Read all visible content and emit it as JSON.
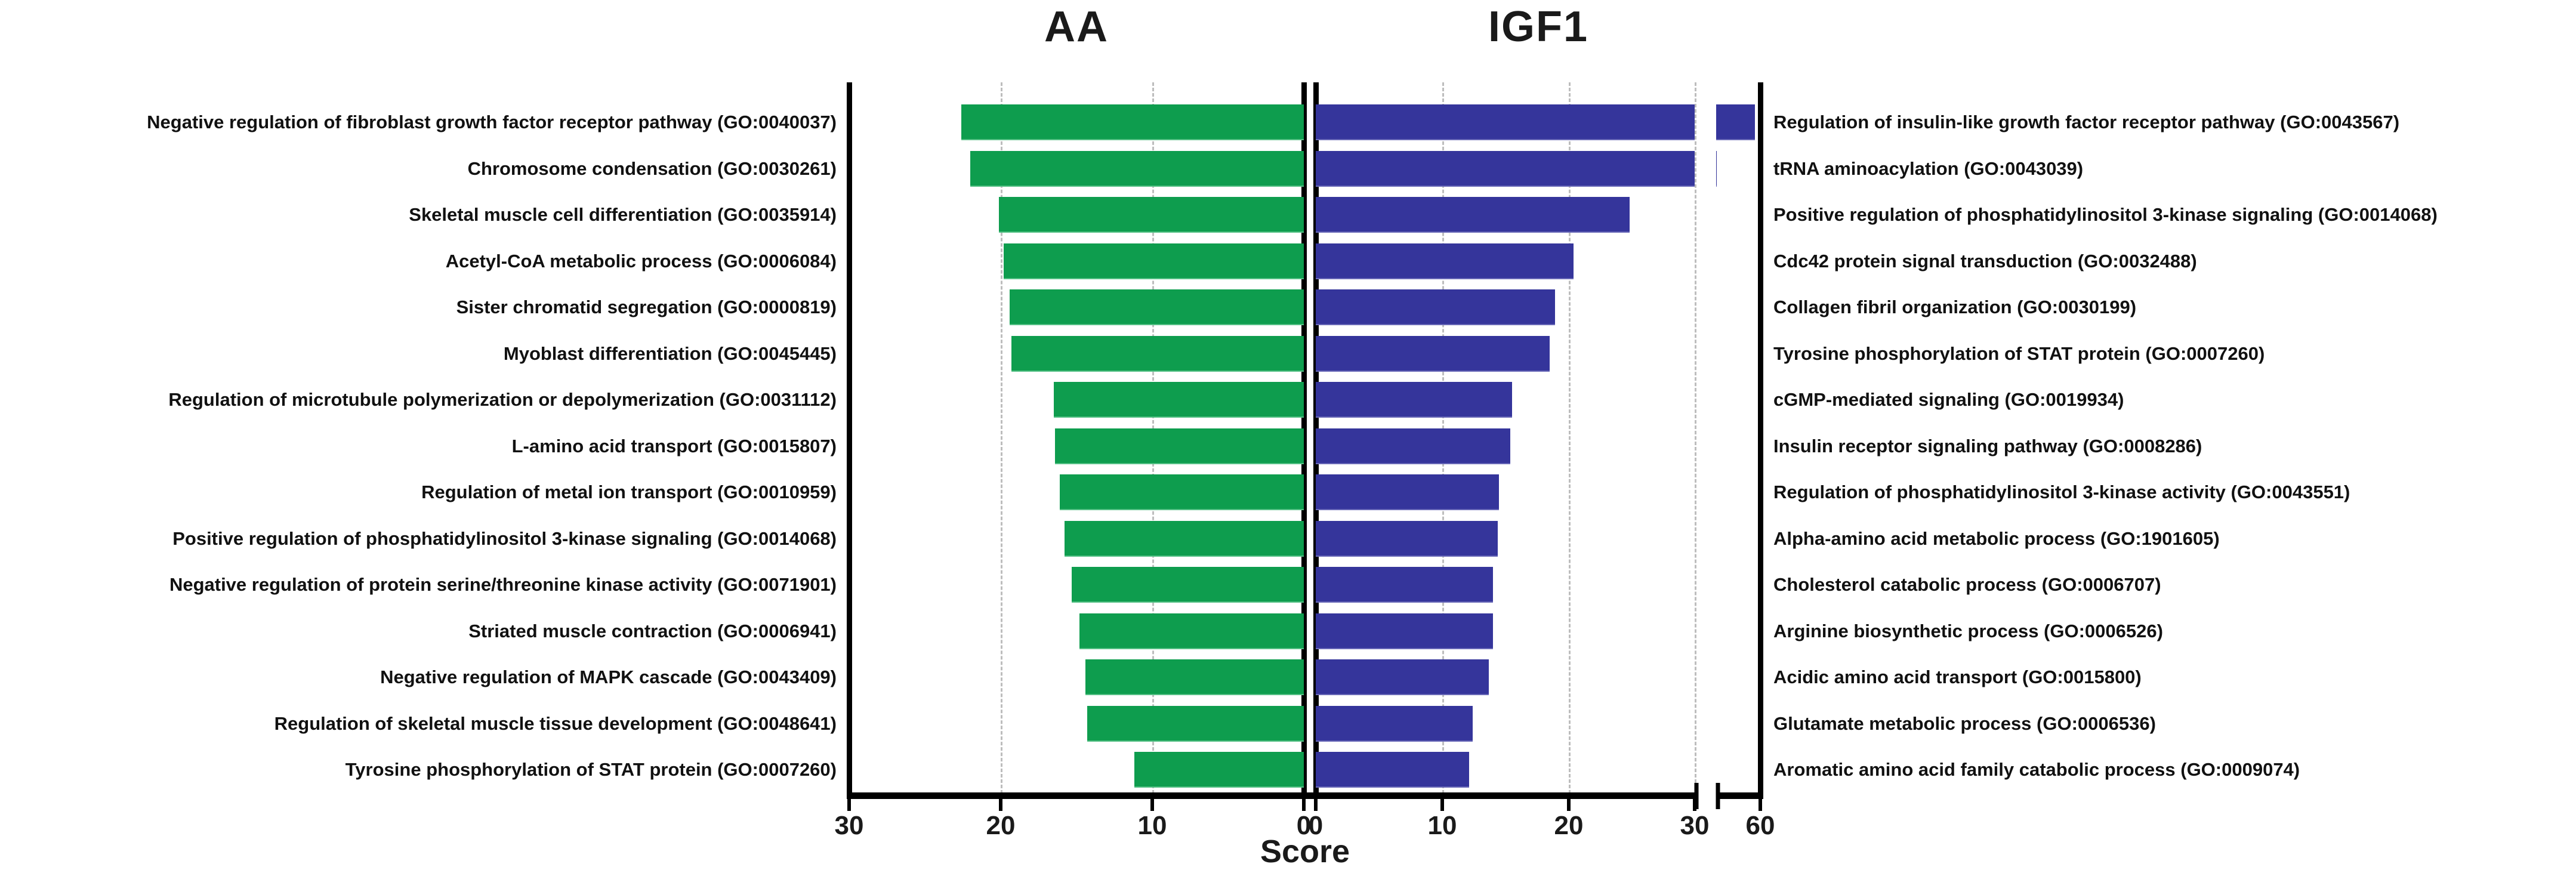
{
  "chart_data": {
    "type": "bar",
    "subtype": "back-to-back-horizontal-butterfly",
    "title_left": "AA",
    "title_right": "IGF1",
    "xlabel": "Score",
    "grid": "dashed-vertical",
    "colors": {
      "aa_bar": "#0e9d4e",
      "igf1_bar": "#35359b",
      "axis": "#000000",
      "gridline": "#bdbdbd"
    },
    "left_axis": {
      "direction": "reversed",
      "ticks": [
        30,
        20,
        10,
        0
      ],
      "range": [
        0,
        30
      ]
    },
    "right_axis": {
      "direction": "normal",
      "ticks": [
        0,
        10,
        20,
        30,
        60
      ],
      "range": [
        0,
        60
      ],
      "axis_break_between": [
        30,
        60
      ]
    },
    "rows": [
      {
        "left_label": "Negative regulation of fibroblast growth factor receptor pathway (GO:0040037)",
        "left_value": 22.6,
        "right_label": "Regulation of insulin-like growth factor receptor pathway (GO:0043567)",
        "right_value": 58
      },
      {
        "left_label": "Chromosome condensation (GO:0030261)",
        "left_value": 22.0,
        "right_label": "tRNA aminoacylation (GO:0043039)",
        "right_value": 30.2
      },
      {
        "left_label": "Skeletal muscle cell differentiation (GO:0035914)",
        "left_value": 20.1,
        "right_label": "Positive regulation of phosphatidylinositol 3-kinase signaling (GO:0014068)",
        "right_value": 24.8
      },
      {
        "left_label": "Acetyl-CoA metabolic process (GO:0006084)",
        "left_value": 19.8,
        "right_label": "Cdc42 protein signal transduction (GO:0032488)",
        "right_value": 20.4
      },
      {
        "left_label": "Sister chromatid segregation (GO:0000819)",
        "left_value": 19.4,
        "right_label": "Collagen fibril organization (GO:0030199)",
        "right_value": 18.9
      },
      {
        "left_label": "Myoblast differentiation (GO:0045445)",
        "left_value": 19.3,
        "right_label": "Tyrosine phosphorylation of STAT protein (GO:0007260)",
        "right_value": 18.5
      },
      {
        "left_label": "Regulation of microtubule polymerization or depolymerization (GO:0031112)",
        "left_value": 16.5,
        "right_label": "cGMP-mediated signaling (GO:0019934)",
        "right_value": 15.5
      },
      {
        "left_label": "L-amino acid transport (GO:0015807)",
        "left_value": 16.4,
        "right_label": "Insulin receptor signaling pathway (GO:0008286)",
        "right_value": 15.4
      },
      {
        "left_label": "Regulation of metal ion transport (GO:0010959)",
        "left_value": 16.1,
        "right_label": "Regulation of phosphatidylinositol 3-kinase activity (GO:0043551)",
        "right_value": 14.5
      },
      {
        "left_label": "Positive regulation of phosphatidylinositol 3-kinase signaling (GO:0014068)",
        "left_value": 15.8,
        "right_label": "Alpha-amino acid metabolic process (GO:1901605)",
        "right_value": 14.4
      },
      {
        "left_label": "Negative regulation of protein serine/threonine kinase activity (GO:0071901)",
        "left_value": 15.3,
        "right_label": "Cholesterol catabolic process (GO:0006707)",
        "right_value": 14.0
      },
      {
        "left_label": "Striated muscle contraction (GO:0006941)",
        "left_value": 14.8,
        "right_label": "Arginine biosynthetic process (GO:0006526)",
        "right_value": 14.0
      },
      {
        "left_label": "Negative regulation of MAPK cascade (GO:0043409)",
        "left_value": 14.4,
        "right_label": "Acidic amino acid transport (GO:0015800)",
        "right_value": 13.7
      },
      {
        "left_label": "Regulation of skeletal muscle tissue development (GO:0048641)",
        "left_value": 14.3,
        "right_label": "Glutamate metabolic process (GO:0006536)",
        "right_value": 12.4
      },
      {
        "left_label": "Tyrosine phosphorylation of STAT protein (GO:0007260)",
        "left_value": 11.2,
        "right_label": "Aromatic amino acid family catabolic process (GO:0009074)",
        "right_value": 12.1
      }
    ]
  }
}
